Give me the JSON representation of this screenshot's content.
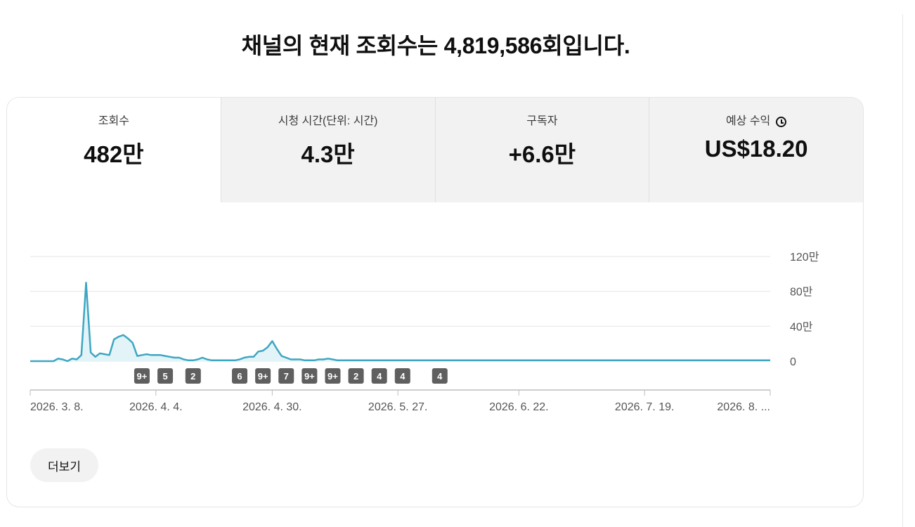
{
  "headline": "채널의 현재 조회수는 4,819,586회입니다.",
  "tabs": [
    {
      "label": "조회수",
      "value": "482만",
      "active": true
    },
    {
      "label": "시청 시간(단위: 시간)",
      "value": "4.3만",
      "active": false
    },
    {
      "label": "구독자",
      "value": "+6.6만",
      "active": false
    },
    {
      "label": "예상 수익",
      "value": "US$18.20",
      "active": false,
      "icon": "clock-icon"
    }
  ],
  "more_button": "더보기",
  "chart_data": {
    "type": "area",
    "series": [
      {
        "values": [
          0,
          0,
          0,
          0,
          0,
          0,
          3,
          2,
          0,
          3,
          2,
          7,
          90,
          10,
          5,
          9,
          8,
          7,
          25,
          28,
          30,
          26,
          21,
          6,
          7,
          8,
          7,
          7,
          7,
          6,
          5,
          4,
          4,
          2,
          1,
          1,
          2,
          4,
          2,
          1,
          1,
          1,
          1,
          1,
          1,
          2,
          4,
          5,
          5,
          11,
          12,
          16,
          23,
          14,
          6,
          4,
          2,
          2,
          2,
          1,
          1,
          1,
          2,
          2,
          3,
          2,
          1,
          1,
          1,
          1,
          1,
          1,
          1,
          1,
          1,
          1,
          1,
          1,
          1,
          1,
          1,
          1,
          1,
          1,
          1,
          1,
          1,
          1,
          1,
          1,
          1,
          1,
          1,
          1,
          1,
          1,
          1,
          1,
          1,
          1,
          1,
          1,
          1,
          1,
          1,
          1,
          1,
          1,
          1,
          1,
          1,
          1,
          1,
          1,
          1,
          1,
          1,
          1,
          1,
          1,
          1,
          1,
          1,
          1,
          1,
          1,
          1,
          1,
          1,
          1,
          1,
          1,
          1,
          1,
          1,
          1,
          1,
          1,
          1,
          1,
          1,
          1,
          1,
          1,
          1,
          1,
          1,
          1,
          1,
          1,
          1,
          1,
          1,
          1,
          1,
          1,
          1,
          1,
          1,
          1
        ]
      }
    ],
    "ylim": [
      0,
      120
    ],
    "y_ticks": [
      0,
      40,
      80,
      120
    ],
    "y_tick_labels": [
      "0",
      "40만",
      "80만",
      "120만"
    ],
    "x_tick_labels": [
      "2026. 3. 8.",
      "2026. 4. 4.",
      "2026. 4. 30.",
      "2026. 5. 27.",
      "2026. 6. 22.",
      "2026. 7. 19.",
      "2026. 8. ..."
    ],
    "x_tick_index": [
      0,
      27,
      52,
      79,
      105,
      132,
      159
    ],
    "markers": [
      {
        "index": 24,
        "label": "9+"
      },
      {
        "index": 29,
        "label": "5"
      },
      {
        "index": 35,
        "label": "2"
      },
      {
        "index": 45,
        "label": "6"
      },
      {
        "index": 50,
        "label": "9+"
      },
      {
        "index": 55,
        "label": "7"
      },
      {
        "index": 60,
        "label": "9+"
      },
      {
        "index": 65,
        "label": "9+"
      },
      {
        "index": 70,
        "label": "2"
      },
      {
        "index": 75,
        "label": "4"
      },
      {
        "index": 80,
        "label": "4"
      },
      {
        "index": 88,
        "label": "4"
      }
    ],
    "line_color": "#3ea6c2",
    "fill_color": "#e3f4f8",
    "grid": true
  }
}
